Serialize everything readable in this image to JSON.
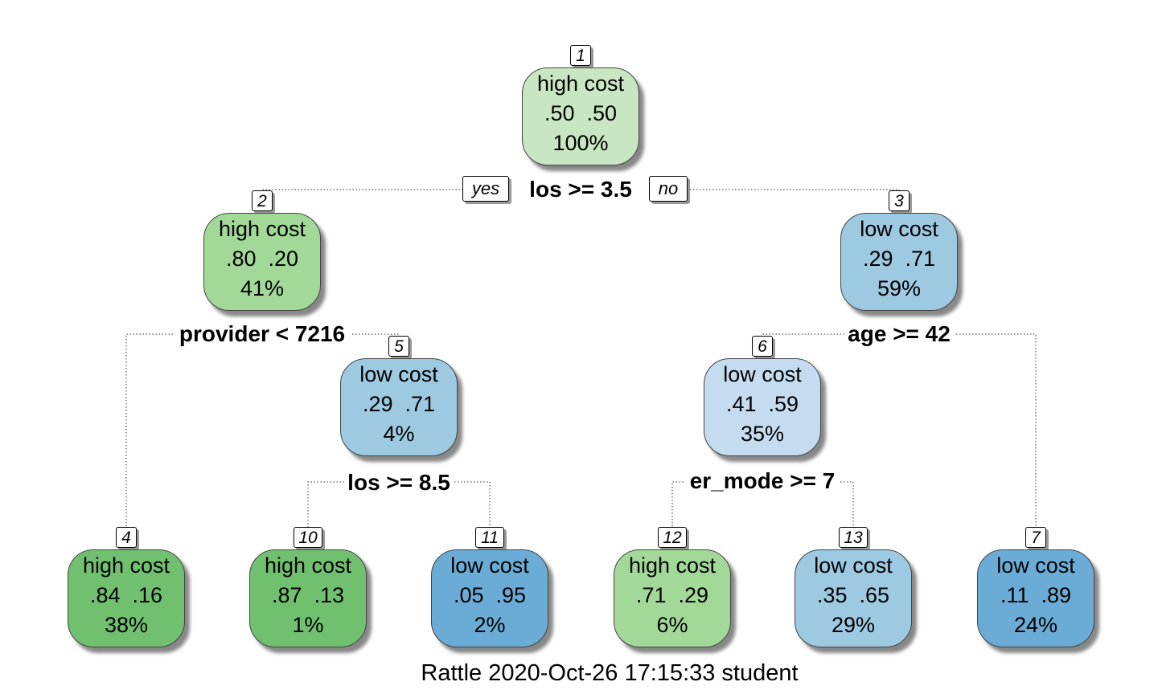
{
  "tree": {
    "root_split": "los >= 3.5",
    "yes_label": "yes",
    "no_label": "no",
    "splits": {
      "node2": "provider < 7216",
      "node3": "age >= 42",
      "node5": "los >= 8.5",
      "node6": "er_mode >= 7"
    },
    "nodes": [
      {
        "id": "1",
        "label": "high cost",
        "probs": ".50  .50",
        "pct": "100%",
        "color": "#c8e6c1"
      },
      {
        "id": "2",
        "label": "high cost",
        "probs": ".80  .20",
        "pct": "41%",
        "color": "#a2d999"
      },
      {
        "id": "3",
        "label": "low cost",
        "probs": ".29  .71",
        "pct": "59%",
        "color": "#9dc9e1"
      },
      {
        "id": "5",
        "label": "low cost",
        "probs": ".29  .71",
        "pct": "4%",
        "color": "#9dc9e1"
      },
      {
        "id": "6",
        "label": "low cost",
        "probs": ".41  .59",
        "pct": "35%",
        "color": "#c5dcf0"
      },
      {
        "id": "4",
        "label": "high cost",
        "probs": ".84  .16",
        "pct": "38%",
        "color": "#70c070"
      },
      {
        "id": "10",
        "label": "high cost",
        "probs": ".87  .13",
        "pct": "1%",
        "color": "#70c070"
      },
      {
        "id": "11",
        "label": "low cost",
        "probs": ".05  .95",
        "pct": "2%",
        "color": "#6aacd6"
      },
      {
        "id": "12",
        "label": "high cost",
        "probs": ".71  .29",
        "pct": "6%",
        "color": "#a2d999"
      },
      {
        "id": "13",
        "label": "low cost",
        "probs": ".35  .65",
        "pct": "29%",
        "color": "#9dc9e1"
      },
      {
        "id": "7",
        "label": "low cost",
        "probs": ".11  .89",
        "pct": "24%",
        "color": "#6aacd6"
      }
    ]
  },
  "caption": "Rattle 2020-Oct-26 17:15:33 student"
}
